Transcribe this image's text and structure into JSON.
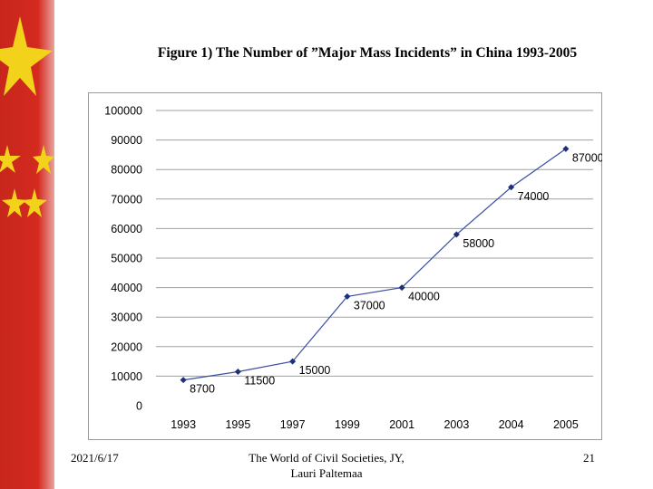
{
  "slide": {
    "title": "Figure 1) The Number of  ”Major Mass Incidents” in China 1993-2005",
    "footer_date": "2021/6/17",
    "footer_center_line1": "The World of Civil Societies, JY,",
    "footer_center_line2": "Lauri Paltemaa",
    "page_number": "21"
  },
  "colors": {
    "line": "#3a4fa0",
    "marker": "#1f2f7a",
    "flag_red": "#d42a1f",
    "flag_star": "#f2d21a"
  },
  "chart_data": {
    "type": "line",
    "title": "",
    "xlabel": "",
    "ylabel": "",
    "categories": [
      "1993",
      "1995",
      "1997",
      "1999",
      "2001",
      "2003",
      "2004",
      "2005"
    ],
    "series": [
      {
        "values": [
          8700,
          11500,
          15000,
          37000,
          40000,
          58000,
          74000,
          87000
        ],
        "data_labels": [
          "8700",
          "11500",
          "15000",
          "37000",
          "40000",
          "58000",
          "74000",
          "87000"
        ]
      }
    ],
    "ylim": [
      0,
      100000
    ],
    "yticks": [
      "0",
      "10000",
      "20000",
      "30000",
      "40000",
      "50000",
      "60000",
      "70000",
      "80000",
      "90000",
      "100000"
    ],
    "grid": true,
    "legend": "none"
  }
}
